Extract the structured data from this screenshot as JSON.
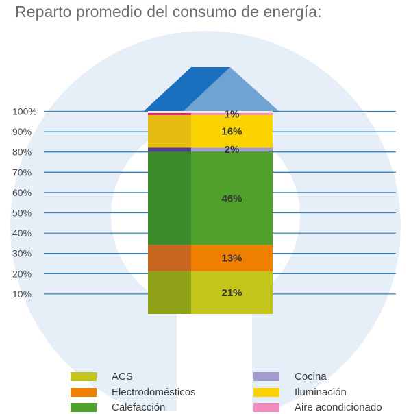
{
  "title": "Reparto promedio del consumo de energía:",
  "chart_data": {
    "type": "bar",
    "stacked": true,
    "title": "Reparto promedio del consumo de energía:",
    "ylim": [
      0,
      100
    ],
    "ytick_labels": [
      "10%",
      "20%",
      "30%",
      "40%",
      "50%",
      "60%",
      "70%",
      "80%",
      "90%",
      "100%"
    ],
    "segments": [
      {
        "name": "ACS",
        "value": 21,
        "label": "21%",
        "color": "#c4c51a",
        "shade": "#8fa117",
        "show_label": true
      },
      {
        "name": "Electrodomésticos",
        "value": 13,
        "label": "13%",
        "color": "#ef7f00",
        "shade": "#c8651f",
        "show_label": true
      },
      {
        "name": "Calefacción",
        "value": 46,
        "label": "46%",
        "color": "#4fa12c",
        "shade": "#3c8b2b",
        "show_label": true
      },
      {
        "name": "Cocina",
        "value": 2,
        "label": "2%",
        "color": "#a39bd0",
        "shade": "#5a3d8b",
        "show_label": true
      },
      {
        "name": "Iluminación",
        "value": 16,
        "label": "16%",
        "color": "#fbd300",
        "shade": "#e5bd10",
        "show_label": true
      },
      {
        "name": "Aire acondicionado",
        "value": 1,
        "label": "1%",
        "color": "#f08dbc",
        "shade": "#e3197d",
        "show_label": true
      },
      {
        "name": "",
        "value": 1,
        "label": "",
        "color": "#f5e9d9",
        "shade": "#f5e9d9",
        "show_label": false
      }
    ],
    "legend": [
      {
        "name": "ACS",
        "color": "#c4c51a"
      },
      {
        "name": "Electrodomésticos",
        "color": "#ef7f00"
      },
      {
        "name": "Calefacción",
        "color": "#4fa12c"
      },
      {
        "name": "Cocina",
        "color": "#a39bd0"
      },
      {
        "name": "Iluminación",
        "color": "#fbd300"
      },
      {
        "name": "Aire acondicionado",
        "color": "#f08dbc"
      }
    ]
  },
  "colors": {
    "background_circle": "#e6eef8",
    "gridline": "#2e86c1",
    "roof_left": "#1a70be",
    "roof_right": "#6fa3d2"
  }
}
